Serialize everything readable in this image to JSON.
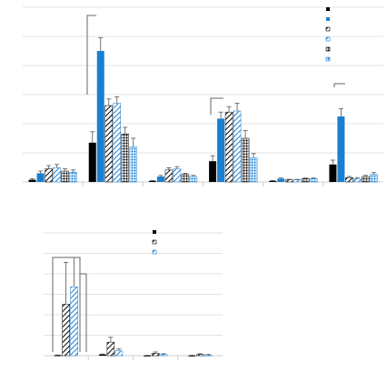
{
  "colors": {
    "black": "#000000",
    "blue": "#1a7fd1",
    "grid": "#e3e3e3",
    "axis": "#cfcfcf",
    "ink": "#333333"
  },
  "patterns": [
    "solid",
    "solid",
    "hatch",
    "hatch",
    "dots",
    "dots"
  ],
  "chart_data": [
    {
      "type": "bar",
      "title": "",
      "xlabel": "",
      "ylabel": "",
      "ylim": [
        0,
        8
      ],
      "grid": true,
      "legend_position": "top-right",
      "groups": 6,
      "categories": [
        "",
        "",
        "",
        "",
        "",
        ""
      ],
      "series": [
        {
          "pattern": "solid",
          "color": "#000000",
          "values": [
            0.1,
            1.8,
            0.05,
            0.95,
            0.05,
            0.8
          ],
          "errors": [
            0.05,
            0.5,
            0.02,
            0.25,
            0.02,
            0.2
          ]
        },
        {
          "pattern": "solid",
          "color": "#1a7fd1",
          "values": [
            0.4,
            6.0,
            0.25,
            2.9,
            0.15,
            3.0
          ],
          "errors": [
            0.1,
            0.6,
            0.05,
            0.3,
            0.03,
            0.35
          ]
        },
        {
          "pattern": "hatch",
          "color": "#000000",
          "values": [
            0.6,
            3.5,
            0.55,
            3.2,
            0.1,
            0.2
          ],
          "errors": [
            0.15,
            0.3,
            0.1,
            0.25,
            0.02,
            0.05
          ]
        },
        {
          "pattern": "hatch",
          "color": "#1a7fd1",
          "values": [
            0.65,
            3.6,
            0.6,
            3.25,
            0.1,
            0.15
          ],
          "errors": [
            0.15,
            0.3,
            0.1,
            0.35,
            0.02,
            0.05
          ]
        },
        {
          "pattern": "dots",
          "color": "#000000",
          "values": [
            0.5,
            2.2,
            0.35,
            2.0,
            0.15,
            0.25
          ],
          "errors": [
            0.1,
            0.3,
            0.05,
            0.35,
            0.03,
            0.05
          ]
        },
        {
          "pattern": "dots",
          "color": "#1a7fd1",
          "values": [
            0.45,
            1.6,
            0.25,
            1.1,
            0.15,
            0.35
          ],
          "errors": [
            0.1,
            0.4,
            0.05,
            0.2,
            0.03,
            0.08
          ]
        }
      ]
    },
    {
      "type": "bar",
      "title": "",
      "xlabel": "",
      "ylabel": "",
      "ylim": [
        0,
        5
      ],
      "grid": true,
      "legend_position": "top-right",
      "groups": 4,
      "categories": [
        "",
        "",
        "",
        ""
      ],
      "series": [
        {
          "pattern": "solid",
          "color": "#000000",
          "values": [
            0.02,
            0.05,
            0.01,
            0.01
          ],
          "errors": [
            0.01,
            0.02,
            0.01,
            0.01
          ]
        },
        {
          "pattern": "hatch",
          "color": "#000000",
          "values": [
            2.1,
            0.55,
            0.1,
            0.05
          ],
          "errors": [
            1.7,
            0.2,
            0.05,
            0.03
          ]
        },
        {
          "pattern": "hatch",
          "color": "#1a7fd1",
          "values": [
            2.8,
            0.2,
            0.05,
            0.03
          ],
          "errors": [
            1.2,
            0.08,
            0.03,
            0.02
          ]
        }
      ]
    }
  ]
}
